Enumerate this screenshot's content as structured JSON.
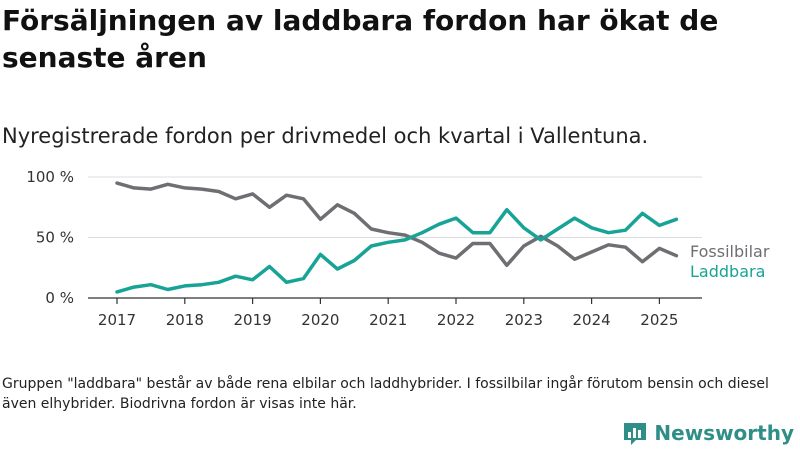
{
  "title": "Försäljningen av laddbara fordon har ökat de senaste åren",
  "subtitle": "Nyregistrerade fordon per drivmedel och kvartal i Vallentuna.",
  "footnote": "Gruppen \"laddbara\" består av både rena elbilar och laddhybrider. I fossilbilar ingår förutom bensin och diesel även elhybrider. Biodrivna fordon är visas inte här.",
  "brand": {
    "name": "Newsworthy",
    "icon": "newsworthy-logo-icon",
    "color": "#2f8f88"
  },
  "chart_data": {
    "type": "line",
    "x_start": "2017-Q1",
    "x_ticks": [
      "2017",
      "2018",
      "2019",
      "2020",
      "2021",
      "2022",
      "2023",
      "2024",
      "2025"
    ],
    "y_ticks": [
      "0 %",
      "50 %",
      "100 %"
    ],
    "y_tick_values": [
      0,
      50,
      100
    ],
    "ylim": [
      0,
      100
    ],
    "grid": true,
    "series": [
      {
        "name": "Fossilbilar",
        "color": "#6f6e73",
        "values": [
          95,
          91,
          90,
          94,
          91,
          90,
          88,
          82,
          86,
          75,
          85,
          82,
          65,
          77,
          70,
          57,
          54,
          52,
          46,
          37,
          33,
          45,
          45,
          27,
          43,
          51,
          43,
          32,
          38,
          44,
          42,
          30,
          41,
          35
        ]
      },
      {
        "name": "Laddbara",
        "color": "#17a396",
        "values": [
          5,
          9,
          11,
          7,
          10,
          11,
          13,
          18,
          15,
          26,
          13,
          16,
          36,
          24,
          31,
          43,
          46,
          48,
          54,
          61,
          66,
          54,
          54,
          73,
          58,
          48,
          57,
          66,
          58,
          54,
          56,
          70,
          60,
          65
        ]
      }
    ]
  }
}
